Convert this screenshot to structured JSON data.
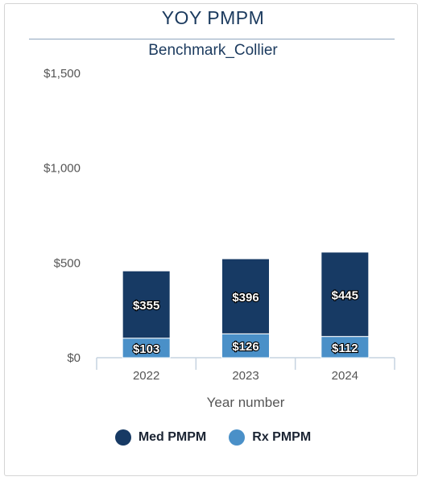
{
  "header": {
    "title": "YOY PMPM",
    "subtitle": "Benchmark_Collier"
  },
  "chart_data": {
    "type": "bar",
    "stacked": true,
    "categories": [
      "2022",
      "2023",
      "2024"
    ],
    "series": [
      {
        "name": "Rx PMPM",
        "values": [
          103,
          126,
          112
        ],
        "labels": [
          "$103",
          "$126",
          "$112"
        ],
        "color": "#4a90c8"
      },
      {
        "name": "Med PMPM",
        "values": [
          355,
          396,
          445
        ],
        "labels": [
          "$355",
          "$396",
          "$445"
        ],
        "color": "#173a64"
      }
    ],
    "xlabel": "Year number",
    "ylabel": "",
    "ylim": [
      0,
      1500
    ],
    "yticks": [
      0,
      500,
      1000,
      1500
    ],
    "ytick_labels": [
      "$0",
      "$500",
      "$1,000",
      "$1,500"
    ],
    "grid": false,
    "legend": {
      "position": "bottom",
      "items": [
        {
          "label": "Med PMPM",
          "color": "#173a64"
        },
        {
          "label": "Rx PMPM",
          "color": "#4a90c8"
        }
      ]
    }
  }
}
